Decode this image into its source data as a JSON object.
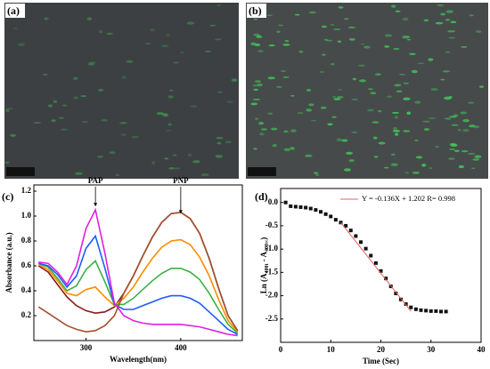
{
  "images": [
    {
      "label": "(a)"
    },
    {
      "label": "(b)"
    }
  ],
  "chart_data": [
    {
      "type": "line",
      "panel_label": "(c)",
      "xlabel": "Wavelength(nm)",
      "ylabel": "Absorbance (a.u.)",
      "annotations": [
        "PAP",
        "PNP"
      ],
      "x": [
        250,
        260,
        270,
        280,
        290,
        300,
        310,
        320,
        330,
        340,
        350,
        360,
        370,
        380,
        390,
        400,
        410,
        420,
        430,
        440,
        450,
        460
      ],
      "series": [
        {
          "color": "#8b1a1a",
          "values": [
            0.6,
            0.55,
            0.45,
            0.35,
            0.28,
            0.24,
            0.22,
            0.23,
            0.27,
            0.38,
            0.52,
            0.68,
            0.83,
            0.95,
            1.02,
            1.03,
            0.98,
            0.86,
            0.66,
            0.42,
            0.2,
            0.08
          ]
        },
        {
          "color": "#ff8c00",
          "values": [
            0.61,
            0.57,
            0.48,
            0.38,
            0.36,
            0.41,
            0.43,
            0.35,
            0.28,
            0.34,
            0.43,
            0.55,
            0.66,
            0.75,
            0.8,
            0.81,
            0.77,
            0.67,
            0.52,
            0.33,
            0.16,
            0.07
          ]
        },
        {
          "color": "#3cb043",
          "values": [
            0.62,
            0.59,
            0.5,
            0.4,
            0.44,
            0.57,
            0.64,
            0.47,
            0.29,
            0.29,
            0.34,
            0.41,
            0.48,
            0.54,
            0.58,
            0.58,
            0.55,
            0.49,
            0.38,
            0.25,
            0.13,
            0.06
          ]
        },
        {
          "color": "#1e5bff",
          "values": [
            0.62,
            0.6,
            0.53,
            0.43,
            0.52,
            0.74,
            0.84,
            0.58,
            0.29,
            0.25,
            0.25,
            0.28,
            0.31,
            0.34,
            0.36,
            0.36,
            0.34,
            0.3,
            0.23,
            0.16,
            0.09,
            0.05
          ]
        },
        {
          "color": "#e020e0",
          "values": [
            0.63,
            0.62,
            0.55,
            0.45,
            0.6,
            0.9,
            1.05,
            0.7,
            0.3,
            0.2,
            0.16,
            0.14,
            0.13,
            0.13,
            0.13,
            0.13,
            0.12,
            0.11,
            0.09,
            0.07,
            0.05,
            0.04
          ]
        },
        {
          "color": "#a0522d",
          "values": [
            0.27,
            0.22,
            0.17,
            0.12,
            0.09,
            0.07,
            0.08,
            0.12,
            0.2,
            0.38,
            0.52,
            0.68,
            0.83,
            0.95,
            1.02,
            1.03,
            0.98,
            0.86,
            0.66,
            0.42,
            0.2,
            0.08
          ]
        }
      ],
      "xlim": [
        245,
        465
      ],
      "xticks": [
        300,
        400
      ],
      "ylim": [
        0,
        1.25
      ],
      "yticks": [
        0.2,
        0.4,
        0.6,
        0.8,
        {
          "value": 1.0,
          "label": "1.0"
        },
        1.2
      ]
    },
    {
      "type": "scatter",
      "panel_label": "(d)",
      "xlabel": "Time (Sec)",
      "ylabel": [
        "Ln (A",
        "400t",
        " - A",
        "400∞",
        ")"
      ],
      "fit_label": "Y = -0.136X + 1.202  R= 0.998",
      "fit_color": "#e06060",
      "color": "#111111",
      "x": [
        1,
        2,
        3,
        4,
        5,
        6,
        7,
        8,
        9,
        10,
        11,
        12,
        13,
        14,
        15,
        16,
        17,
        18,
        19,
        20,
        21,
        22,
        23,
        24,
        25,
        26,
        27,
        28,
        29,
        30,
        31,
        32,
        33
      ],
      "values": [
        0.0,
        -0.08,
        -0.09,
        -0.1,
        -0.11,
        -0.13,
        -0.16,
        -0.2,
        -0.25,
        -0.3,
        -0.37,
        -0.43,
        -0.5,
        -0.6,
        -0.72,
        -0.85,
        -0.99,
        -1.14,
        -1.3,
        -1.47,
        -1.63,
        -1.8,
        -1.95,
        -2.08,
        -2.18,
        -2.25,
        -2.29,
        -2.31,
        -2.32,
        -2.33,
        -2.33,
        -2.34,
        -2.34
      ],
      "fit": {
        "x": [
          12,
          26
        ],
        "values": [
          -0.43,
          -2.334
        ]
      },
      "xlim": [
        0,
        40
      ],
      "xticks": [
        0,
        10,
        20,
        30,
        40
      ],
      "ylim": [
        -3.0,
        0.3
      ],
      "yticks": [
        {
          "value": 0.0,
          "label": "0.0"
        },
        -0.5,
        {
          "value": -1.0,
          "label": "-1.0"
        },
        -1.5,
        {
          "value": -2.0,
          "label": "-2.0"
        },
        -2.5
      ]
    }
  ]
}
